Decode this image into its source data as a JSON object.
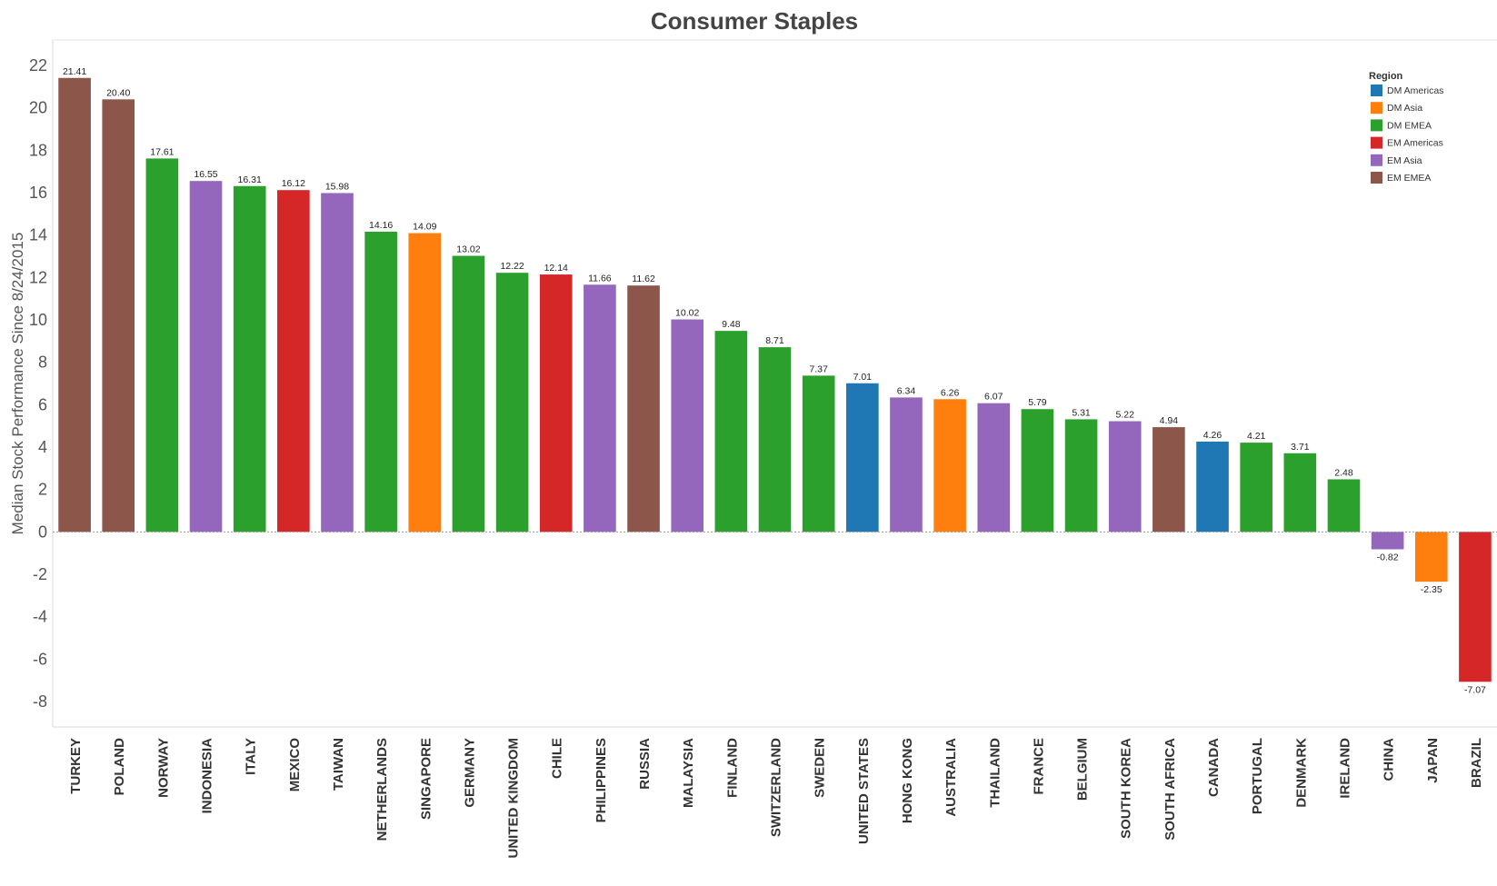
{
  "chart_data": {
    "type": "bar",
    "title": "Consumer Staples",
    "ylabel": "Median Stock Performance Since 8/24/2015",
    "xlabel": "",
    "ylim": [
      -9.2,
      23.2
    ],
    "yticks": [
      22,
      20,
      18,
      16,
      14,
      12,
      10,
      8,
      6,
      4,
      2,
      0,
      -2,
      -4,
      -6,
      -8
    ],
    "legend": {
      "title": "Region",
      "position": "top-right",
      "items": [
        {
          "name": "DM Americas",
          "color": "#1f77b4"
        },
        {
          "name": "DM Asia",
          "color": "#ff7f0e"
        },
        {
          "name": "DM EMEA",
          "color": "#2ca02c"
        },
        {
          "name": "EM Americas",
          "color": "#d62728"
        },
        {
          "name": "EM Asia",
          "color": "#9467bd"
        },
        {
          "name": "EM EMEA",
          "color": "#8c564b"
        }
      ]
    },
    "bars": [
      {
        "category": "TURKEY",
        "value": 21.41,
        "label": "21.41",
        "region": "EM EMEA"
      },
      {
        "category": "POLAND",
        "value": 20.4,
        "label": "20.40",
        "region": "EM EMEA"
      },
      {
        "category": "NORWAY",
        "value": 17.61,
        "label": "17.61",
        "region": "DM EMEA"
      },
      {
        "category": "INDONESIA",
        "value": 16.55,
        "label": "16.55",
        "region": "EM Asia"
      },
      {
        "category": "ITALY",
        "value": 16.31,
        "label": "16.31",
        "region": "DM EMEA"
      },
      {
        "category": "MEXICO",
        "value": 16.12,
        "label": "16.12",
        "region": "EM Americas"
      },
      {
        "category": "TAIWAN",
        "value": 15.98,
        "label": "15.98",
        "region": "EM Asia"
      },
      {
        "category": "NETHERLANDS",
        "value": 14.16,
        "label": "14.16",
        "region": "DM EMEA"
      },
      {
        "category": "SINGAPORE",
        "value": 14.09,
        "label": "14.09",
        "region": "DM Asia"
      },
      {
        "category": "GERMANY",
        "value": 13.02,
        "label": "13.02",
        "region": "DM EMEA"
      },
      {
        "category": "UNITED KINGDOM",
        "value": 12.22,
        "label": "12.22",
        "region": "DM EMEA"
      },
      {
        "category": "CHILE",
        "value": 12.14,
        "label": "12.14",
        "region": "EM Americas"
      },
      {
        "category": "PHILIPPINES",
        "value": 11.66,
        "label": "11.66",
        "region": "EM Asia"
      },
      {
        "category": "RUSSIA",
        "value": 11.62,
        "label": "11.62",
        "region": "EM EMEA"
      },
      {
        "category": "MALAYSIA",
        "value": 10.02,
        "label": "10.02",
        "region": "EM Asia"
      },
      {
        "category": "FINLAND",
        "value": 9.48,
        "label": "9.48",
        "region": "DM EMEA"
      },
      {
        "category": "SWITZERLAND",
        "value": 8.71,
        "label": "8.71",
        "region": "DM EMEA"
      },
      {
        "category": "SWEDEN",
        "value": 7.37,
        "label": "7.37",
        "region": "DM EMEA"
      },
      {
        "category": "UNITED STATES",
        "value": 7.01,
        "label": "7.01",
        "region": "DM Americas"
      },
      {
        "category": "HONG KONG",
        "value": 6.34,
        "label": "6.34",
        "region": "EM Asia"
      },
      {
        "category": "AUSTRALIA",
        "value": 6.26,
        "label": "6.26",
        "region": "DM Asia"
      },
      {
        "category": "THAILAND",
        "value": 6.07,
        "label": "6.07",
        "region": "EM Asia"
      },
      {
        "category": "FRANCE",
        "value": 5.79,
        "label": "5.79",
        "region": "DM EMEA"
      },
      {
        "category": "BELGIUM",
        "value": 5.31,
        "label": "5.31",
        "region": "DM EMEA"
      },
      {
        "category": "SOUTH KOREA",
        "value": 5.22,
        "label": "5.22",
        "region": "EM Asia"
      },
      {
        "category": "SOUTH AFRICA",
        "value": 4.94,
        "label": "4.94",
        "region": "EM EMEA"
      },
      {
        "category": "CANADA",
        "value": 4.26,
        "label": "4.26",
        "region": "DM Americas"
      },
      {
        "category": "PORTUGAL",
        "value": 4.21,
        "label": "4.21",
        "region": "DM EMEA"
      },
      {
        "category": "DENMARK",
        "value": 3.71,
        "label": "3.71",
        "region": "DM EMEA"
      },
      {
        "category": "IRELAND",
        "value": 2.48,
        "label": "2.48",
        "region": "DM EMEA"
      },
      {
        "category": "CHINA",
        "value": -0.82,
        "label": "-0.82",
        "region": "EM Asia"
      },
      {
        "category": "JAPAN",
        "value": -2.35,
        "label": "-2.35",
        "region": "DM Asia"
      },
      {
        "category": "BRAZIL",
        "value": -7.07,
        "label": "-7.07",
        "region": "EM Americas"
      }
    ]
  }
}
